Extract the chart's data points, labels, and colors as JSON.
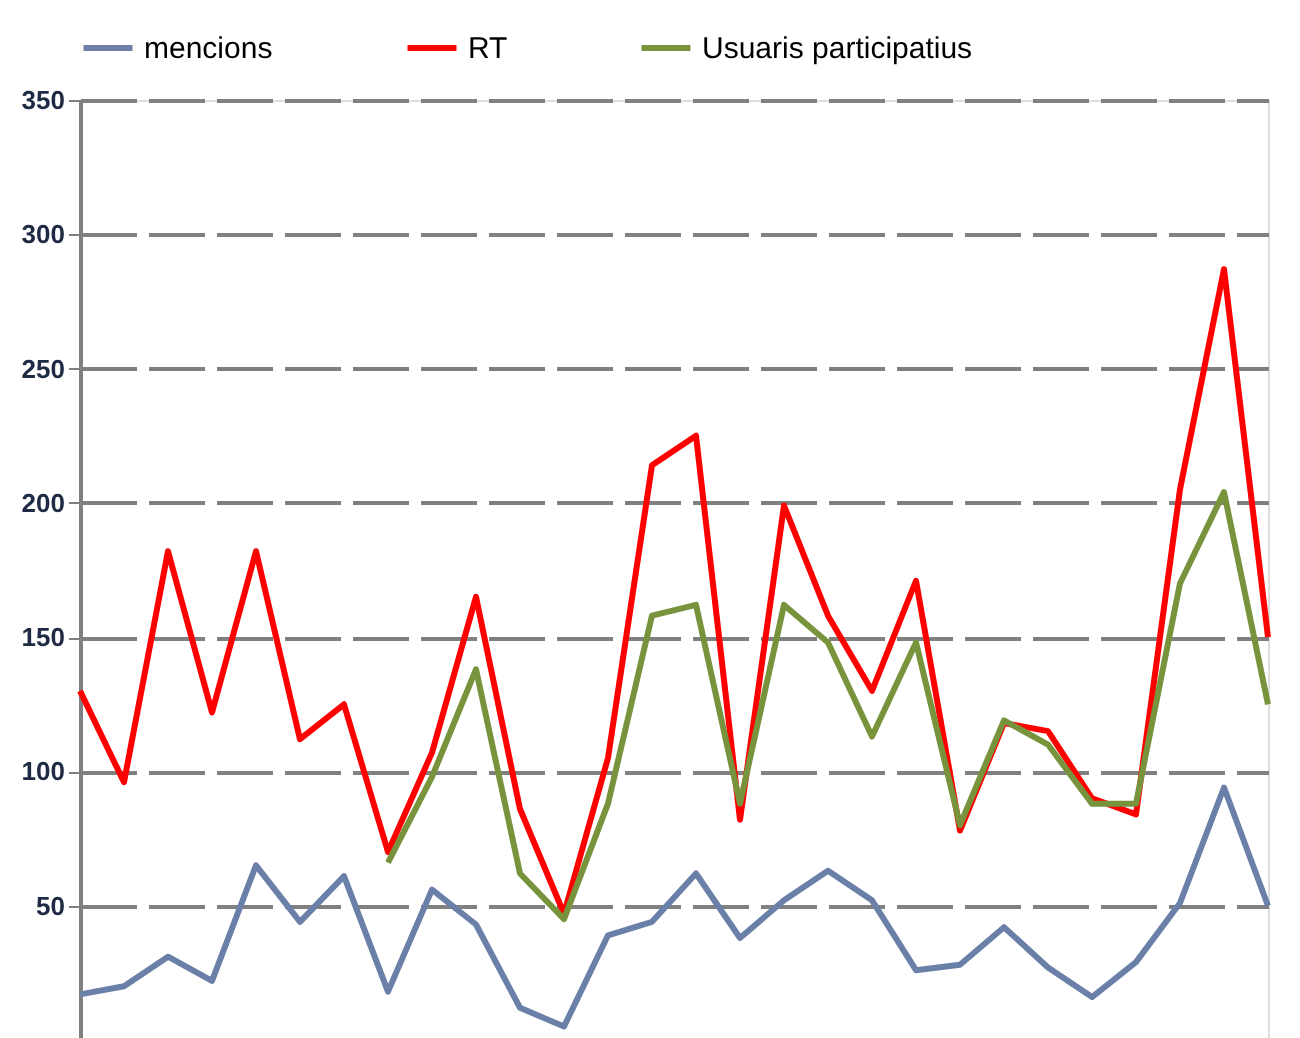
{
  "chart_data": {
    "type": "line",
    "categories": [
      null,
      null,
      null,
      null,
      null,
      null,
      null,
      null,
      null,
      null,
      null,
      null,
      null,
      null,
      null,
      null,
      null,
      null,
      null,
      null,
      null,
      null,
      null,
      null,
      null,
      null,
      null,
      null
    ],
    "series": [
      {
        "name": "mencions",
        "color": "#6b80a8",
        "values": [
          17,
          20,
          31,
          22,
          65,
          44,
          61,
          18,
          56,
          43,
          12,
          5,
          39,
          44,
          62,
          38,
          52,
          63,
          52,
          26,
          28,
          42,
          27,
          16,
          29,
          51,
          94,
          50
        ]
      },
      {
        "name": "RT",
        "color": "#ff0000",
        "values": [
          130,
          96,
          182,
          122,
          182,
          112,
          125,
          70,
          107,
          165,
          86,
          47,
          105,
          214,
          225,
          82,
          199,
          158,
          130,
          171,
          78,
          118,
          115,
          90,
          84,
          205,
          287,
          150
        ]
      },
      {
        "name": "Usuaris participatius",
        "color": "#77933c",
        "values": [
          null,
          null,
          null,
          null,
          null,
          null,
          null,
          66,
          98,
          138,
          62,
          45,
          88,
          158,
          162,
          88,
          162,
          148,
          113,
          148,
          80,
          119,
          110,
          88,
          88,
          170,
          204,
          125
        ]
      }
    ],
    "ylim": [
      0,
      350
    ],
    "yticks": [
      50,
      100,
      150,
      200,
      250,
      300,
      350
    ],
    "grid": "y",
    "legend": "top",
    "tick_labels": "y",
    "marker": "none",
    "line_style": "solid"
  }
}
